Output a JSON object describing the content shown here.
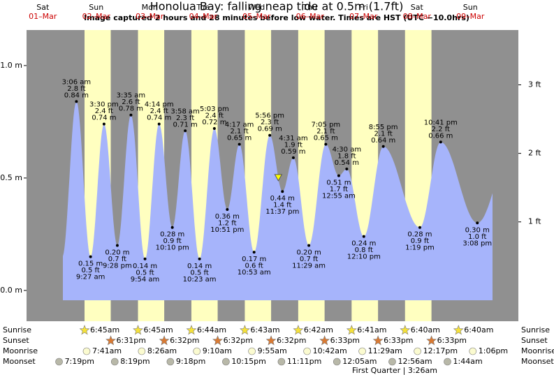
{
  "chart_data": {
    "type": "tide",
    "title": "Honolua Bay: falling  neap tide at 0.5m (1.7ft)",
    "subtitle": "Image captured 2 hours and 28 minutes before low water. Times are HST (UTC −10.0hrs)",
    "now_level": 0.5,
    "ylim": [
      -0.137,
      1.158
    ],
    "yticks": [
      {
        "value": 0,
        "label": "0.0 m"
      },
      {
        "value": 0.5,
        "label": "0.5 m"
      },
      {
        "value": 1,
        "label": "1.0 m"
      }
    ],
    "y2lim": [
      -0.45,
      3.8
    ],
    "y2ticks": [
      {
        "value": 1,
        "label": "1 ft"
      },
      {
        "value": 2,
        "label": "2 ft"
      },
      {
        "value": 3,
        "label": "3 ft"
      }
    ],
    "colors": {
      "night": "#909090",
      "day": "#ffffc0",
      "water": "#a6b4fb"
    },
    "rows": {
      "sunrise": "Sunrise",
      "sunset": "Sunset",
      "moonrise": "Moonrise",
      "moonset": "Moonset"
    },
    "moon_phase": "First Quarter | 3:26am",
    "days": [
      {
        "name": "Sat",
        "date": "01–Mar",
        "extremes": [],
        "moonset": "7:19pm"
      },
      {
        "name": "Sun",
        "date": "02–Mar",
        "sunrise": "6:45am",
        "sunset": "6:31pm",
        "moonrise": "7:41am",
        "moonset": "8:19pm",
        "extremes": [
          {
            "time": "3:06 am",
            "value": 0.84,
            "label_m": "0.84 m",
            "label_ft": "2.8 ft"
          },
          {
            "time": "9:27 am",
            "value": 0.15,
            "label_m": "0.15 m",
            "label_ft": "0.5 ft"
          },
          {
            "time": "3:30 pm",
            "value": 0.74,
            "label_m": "0.74 m",
            "label_ft": "2.4 ft"
          },
          {
            "time": "9:28 pm",
            "value": 0.2,
            "label_m": "0.20 m",
            "label_ft": "0.7 ft"
          }
        ]
      },
      {
        "name": "Mon",
        "date": "03–Mar",
        "sunrise": "6:45am",
        "sunset": "6:32pm",
        "moonrise": "8:26am",
        "moonset": "9:18pm",
        "extremes": [
          {
            "time": "3:35 am",
            "value": 0.78,
            "label_m": "0.78 m",
            "label_ft": "2.6 ft"
          },
          {
            "time": "9:54 am",
            "value": 0.14,
            "label_m": "0.14 m",
            "label_ft": "0.5 ft"
          },
          {
            "time": "4:14 pm",
            "value": 0.74,
            "label_m": "0.74 m",
            "label_ft": "2.4 ft"
          },
          {
            "time": "10:10 pm",
            "value": 0.28,
            "label_m": "0.28 m",
            "label_ft": "0.9 ft"
          }
        ]
      },
      {
        "name": "Tue",
        "date": "04–Mar",
        "sunrise": "6:44am",
        "sunset": "6:32pm",
        "moonrise": "9:10am",
        "moonset": "10:15pm",
        "extremes": [
          {
            "time": "3:58 am",
            "value": 0.71,
            "label_m": "0.71 m",
            "label_ft": "2.3 ft"
          },
          {
            "time": "10:23 am",
            "value": 0.14,
            "label_m": "0.14 m",
            "label_ft": "0.5 ft"
          },
          {
            "time": "5:03 pm",
            "value": 0.72,
            "label_m": "0.72 m",
            "label_ft": "2.4 ft"
          },
          {
            "time": "10:51 pm",
            "value": 0.36,
            "label_m": "0.36 m",
            "label_ft": "1.2 ft"
          }
        ]
      },
      {
        "name": "Wed",
        "date": "05–Mar",
        "sunrise": "6:43am",
        "sunset": "6:32pm",
        "moonrise": "9:55am",
        "moonset": "11:11pm",
        "extremes": [
          {
            "time": "4:17 am",
            "value": 0.65,
            "label_m": "0.65 m",
            "label_ft": "2.1 ft"
          },
          {
            "time": "10:53 am",
            "value": 0.17,
            "label_m": "0.17 m",
            "label_ft": "0.6 ft"
          },
          {
            "time": "5:56 pm",
            "value": 0.69,
            "label_m": "0.69 m",
            "label_ft": "2.3 ft"
          },
          {
            "time": "11:37 pm",
            "value": 0.44,
            "label_m": "0.44 m",
            "label_ft": "1.4 ft"
          }
        ]
      },
      {
        "name": "Thu",
        "date": "06–Mar",
        "sunrise": "6:42am",
        "sunset": "6:33pm",
        "moonrise": "10:42am",
        "extremes": [
          {
            "time": "4:31 am",
            "value": 0.59,
            "label_m": "0.59 m",
            "label_ft": "1.9 ft"
          },
          {
            "time": "11:29 am",
            "value": 0.2,
            "label_m": "0.20 m",
            "label_ft": "0.7 ft"
          },
          {
            "time": "7:05 pm",
            "value": 0.65,
            "label_m": "0.65 m",
            "label_ft": "2.1 ft"
          }
        ]
      },
      {
        "name": "Fri",
        "date": "07–Mar",
        "sunrise": "6:41am",
        "sunset": "6:33pm",
        "moonrise": "11:29am",
        "moonset": "12:05am",
        "extremes": [
          {
            "time": "12:55 am",
            "value": 0.51,
            "label_m": "0.51 m",
            "label_ft": "1.7 ft"
          },
          {
            "time": "4:30 am",
            "value": 0.54,
            "label_m": "0.54 m",
            "label_ft": "1.8 ft"
          },
          {
            "time": "12:10 pm",
            "value": 0.24,
            "label_m": "0.24 m",
            "label_ft": "0.8 ft"
          },
          {
            "time": "8:55 pm",
            "value": 0.64,
            "label_m": "0.64 m",
            "label_ft": "2.1 ft"
          }
        ]
      },
      {
        "name": "Sat",
        "date": "08–Mar",
        "sunrise": "6:40am",
        "sunset": "6:33pm",
        "moonrise": "12:17pm",
        "moonset": "12:56am",
        "extremes": [
          {
            "time": "1:19 pm",
            "value": 0.28,
            "label_m": "0.28 m",
            "label_ft": "0.9 ft"
          },
          {
            "time": "10:41 pm",
            "value": 0.66,
            "label_m": "0.66 m",
            "label_ft": "2.2 ft"
          }
        ]
      },
      {
        "name": "Sun",
        "date": "09–Mar",
        "sunrise": "6:40am",
        "moonrise": "1:06pm",
        "moonset": "1:44am",
        "extremes": [
          {
            "time": "3:08 pm",
            "value": 0.3,
            "label_m": "0.30 m",
            "label_ft": "1.0 ft"
          }
        ]
      }
    ]
  }
}
